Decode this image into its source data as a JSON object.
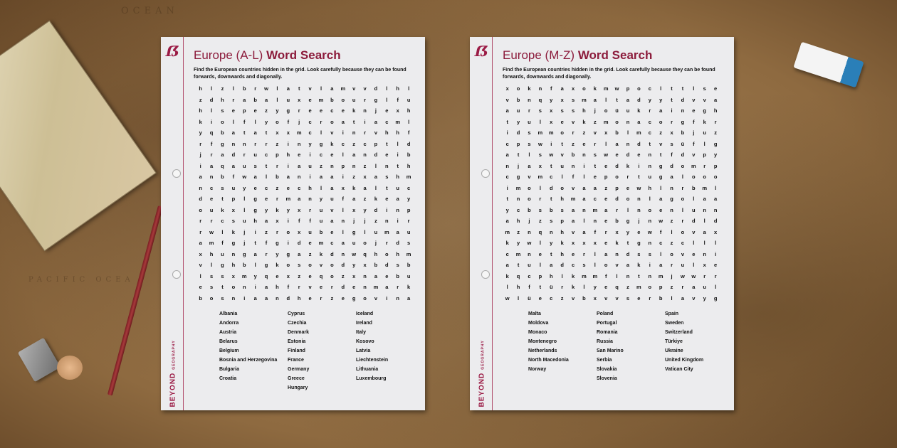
{
  "background": {
    "map_labels": [
      "OCEAN",
      "PACIFIC OCEA"
    ]
  },
  "brand": {
    "name": "BEYOND",
    "subject": "GEOGRAPHY",
    "accent": "#9b1b45"
  },
  "sheets": [
    {
      "title_light": "Europe (A-L)",
      "title_bold": "Word Search",
      "instructions": "Find the European countries hidden in the grid. Look carefully because they can be found forwards, downwards and diagonally.",
      "grid": [
        "hlzlbrwlatvlamvvdlhl",
        "zdhrabaluxembourglfu",
        "hlsepezygreeceknjexh",
        "kiolflyofjcroatiacml",
        "yqbatatxxmclvinrvhhf",
        "rfgnnrrzinygkczcptld",
        "jradrucpheicelandeib",
        "iaqaustriauznpnzlnth",
        "anbfwalbaniaaizxashm",
        "ncsuyeczechlaxkaltuc",
        "detplgermanyufazkeay",
        "oukxlgykyxruvlxydinp",
        "rrcsuhaxiffuanjjznir",
        "rwlkjizroxubelglumau",
        "amfgjtfgidemcauojrds",
        "xhungarygazkdnwqhohm",
        "vlghblgkosovodyxbdsb",
        "lssxmyqexzeqozxnaebu",
        "estoniahfrverdenmark",
        "bosniaandherzegovina"
      ],
      "word_columns": [
        [
          "Albania",
          "Andorra",
          "Austria",
          "Belarus",
          "Belgium",
          "Bosnia and Herzegovina",
          "Bulgaria",
          "Croatia"
        ],
        [
          "Cyprus",
          "Czechia",
          "Denmark",
          "Estonia",
          "Finland",
          "France",
          "Germany",
          "Greece",
          "Hungary"
        ],
        [
          "Iceland",
          "Ireland",
          "Italy",
          "Kosovo",
          "Latvia",
          "Liechtenstein",
          "Lithuania",
          "Luxembourg"
        ]
      ]
    },
    {
      "title_light": "Europe (M-Z)",
      "title_bold": "Word Search",
      "instructions": "Find the European countries hidden in the grid. Look carefully because they can be found forwards, downwards and diagonally.",
      "grid": [
        "xoknfaxokmwpoclttlse",
        "vbnqyxsmaltadyytdvva",
        "aursxsshjoüukrainegh",
        "tyulxevkzmonacorgfkr",
        "idsmmorzvxblmczxbjuz",
        "cpswitzerlandtvsüflg",
        "atlswvbnswedentfdvpy",
        "njaxtunitedkingdomrp",
        "cgvmclfleportugalooo",
        "imoldovaazpewhlnrbml",
        "tnorthmacedonlagolaa",
        "ycbsbsanmarlnoenlunn",
        "ahjzspalnebgjnwzrdld",
        "mznqnhvafrxyewflovax",
        "kywlykxxxektgnczclll",
        "cmnetherlandsslovenia",
        "atuladcslovakiarulxe",
        "kqcphlkmmflntnmjwwrr",
        "lhftürklyeqzmopzraul",
        "wlüeczvbxvvserblavyg"
      ],
      "word_columns": [
        [
          "Malta",
          "Moldova",
          "Monaco",
          "Montenegro",
          "Netherlands",
          "North Macedonia",
          "Norway"
        ],
        [
          "Poland",
          "Portugal",
          "Romania",
          "Russia",
          "San Marino",
          "Serbia",
          "Slovakia",
          "Slovenia"
        ],
        [
          "Spain",
          "Sweden",
          "Switzerland",
          "Türkiye",
          "Ukraine",
          "United Kingdom",
          "Vatican City"
        ]
      ]
    }
  ]
}
